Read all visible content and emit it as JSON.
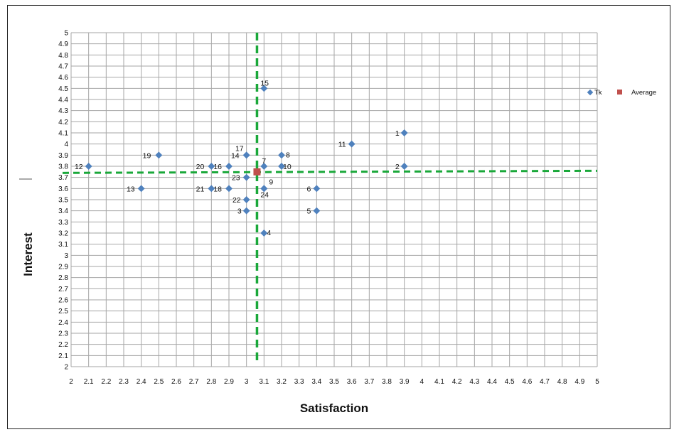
{
  "chart_data": {
    "type": "scatter",
    "title": "",
    "xlabel": "Satisfaction",
    "ylabel": "Interest",
    "xlim": [
      2,
      5
    ],
    "ylim": [
      2,
      5
    ],
    "xstep": 0.1,
    "ystep": 0.1,
    "grid": true,
    "legend_position": "right",
    "colors": {
      "points": "#4f81bd",
      "average": "#c0504d",
      "reference_lines": "#1aa83a",
      "grid": "#a6a6a6"
    },
    "series": [
      {
        "name": "Tk",
        "marker": "diamond",
        "points": [
          {
            "label": "1",
            "x": 3.9,
            "y": 4.1
          },
          {
            "label": "2",
            "x": 3.9,
            "y": 3.8
          },
          {
            "label": "3",
            "x": 3.0,
            "y": 3.4
          },
          {
            "label": "4",
            "x": 3.1,
            "y": 3.2
          },
          {
            "label": "5",
            "x": 3.4,
            "y": 3.4
          },
          {
            "label": "6",
            "x": 3.4,
            "y": 3.6
          },
          {
            "label": "7",
            "x": 3.1,
            "y": 3.8
          },
          {
            "label": "8",
            "x": 3.2,
            "y": 3.9
          },
          {
            "label": "9",
            "x": 3.1,
            "y": 3.6
          },
          {
            "label": "10",
            "x": 3.2,
            "y": 3.8
          },
          {
            "label": "11",
            "x": 3.6,
            "y": 4.0
          },
          {
            "label": "12",
            "x": 2.1,
            "y": 3.8
          },
          {
            "label": "13",
            "x": 2.4,
            "y": 3.6
          },
          {
            "label": "14",
            "x": 3.0,
            "y": 3.9
          },
          {
            "label": "15",
            "x": 3.1,
            "y": 4.5
          },
          {
            "label": "16",
            "x": 2.9,
            "y": 3.8
          },
          {
            "label": "17",
            "x": 3.0,
            "y": 3.9
          },
          {
            "label": "18",
            "x": 2.9,
            "y": 3.6
          },
          {
            "label": "19",
            "x": 2.5,
            "y": 3.9
          },
          {
            "label": "20",
            "x": 2.8,
            "y": 3.8
          },
          {
            "label": "21",
            "x": 2.8,
            "y": 3.6
          },
          {
            "label": "22",
            "x": 3.0,
            "y": 3.5
          },
          {
            "label": "23",
            "x": 3.0,
            "y": 3.7
          },
          {
            "label": "24",
            "x": 3.1,
            "y": 3.6
          }
        ]
      },
      {
        "name": "Average",
        "marker": "square",
        "points": [
          {
            "label": "",
            "x": 3.06,
            "y": 3.75
          }
        ]
      }
    ],
    "reference_lines": [
      {
        "orientation": "vertical",
        "value": 3.06,
        "style": "dashed"
      },
      {
        "orientation": "horizontal",
        "value": 3.75,
        "style": "dashed"
      }
    ]
  }
}
